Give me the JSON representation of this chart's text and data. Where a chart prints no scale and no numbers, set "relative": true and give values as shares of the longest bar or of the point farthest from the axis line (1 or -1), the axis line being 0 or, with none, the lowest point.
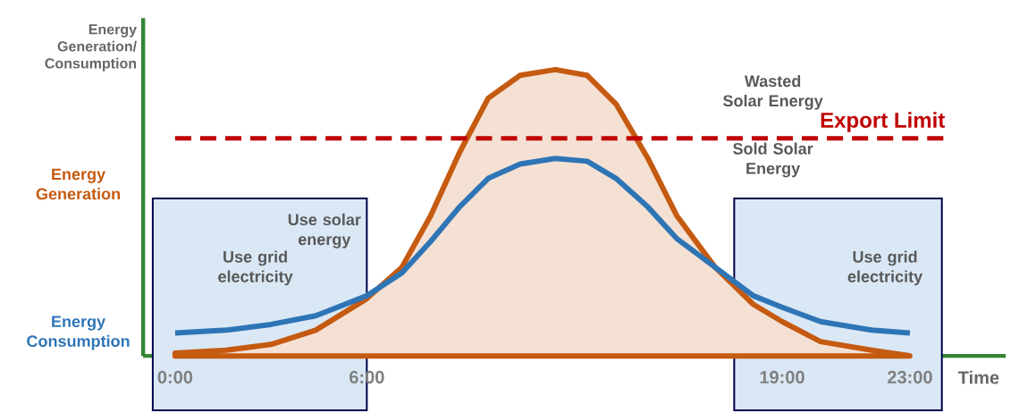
{
  "chart_data": {
    "type": "area",
    "relative": true,
    "xlabel": "Time",
    "ylabel": "Energy Generation/ Consumption",
    "x": [
      0,
      1.6,
      3.0,
      4.4,
      6,
      7.1,
      8.0,
      8.9,
      9.8,
      10.8,
      11.9,
      12.9,
      13.8,
      14.8,
      15.7,
      16.9,
      18.1,
      19,
      20.2,
      21.8,
      23
    ],
    "xlim": [
      -1,
      26
    ],
    "xticks": [
      {
        "value": 0,
        "label": "0:00"
      },
      {
        "value": 6,
        "label": "6:00"
      },
      {
        "value": 19,
        "label": "19:00"
      },
      {
        "value": 23,
        "label": "23:00"
      }
    ],
    "series": [
      {
        "name": "Energy Generation",
        "color": "#c55a11",
        "values": [
          0.01,
          0.02,
          0.04,
          0.09,
          0.2,
          0.31,
          0.49,
          0.71,
          0.9,
          0.98,
          1,
          0.98,
          0.88,
          0.69,
          0.49,
          0.31,
          0.18,
          0.12,
          0.05,
          0.02,
          0
        ]
      },
      {
        "name": "Energy Consumption",
        "type": "line",
        "color": "#2e75b6",
        "values": [
          0.08,
          0.09,
          0.11,
          0.14,
          0.21,
          0.29,
          0.4,
          0.52,
          0.62,
          0.67,
          0.69,
          0.68,
          0.62,
          0.52,
          0.41,
          0.31,
          0.21,
          0.17,
          0.12,
          0.09,
          0.08
        ]
      }
    ],
    "ref_lines": [
      {
        "axis": "y",
        "value": 0.76,
        "label": "Export Limit",
        "color": "#c00000",
        "line_style": "dashed"
      }
    ],
    "bands": [
      {
        "axis": "x",
        "from": -0.7,
        "to": 6,
        "color": "#dae8f5"
      },
      {
        "axis": "x",
        "from": 17.5,
        "to": 24,
        "color": "#dae8f5"
      }
    ],
    "annotations": [
      "Wasted Solar Energy",
      "Sold Solar Energy",
      "Use solar energy",
      "Use grid electricity",
      "Use grid electricity"
    ],
    "grid": false,
    "marker": "none",
    "line_style": "solid"
  }
}
